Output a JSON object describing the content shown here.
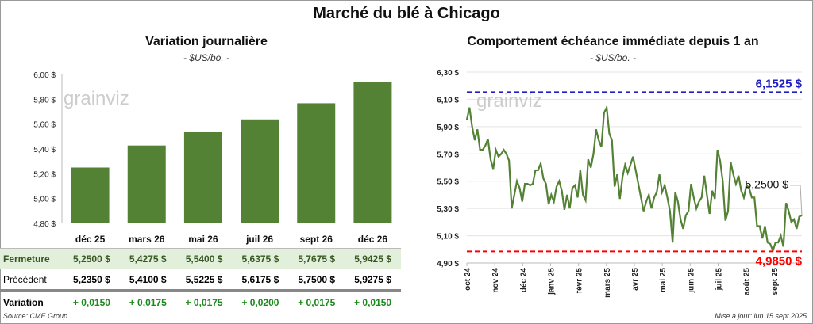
{
  "title": "Marché du blé à Chicago",
  "footer": {
    "source": "Source: CME Group",
    "updated": "Mise à jour: lun 15 sept 2025"
  },
  "watermark": "grainviz",
  "table": {
    "headers": [
      "déc 25",
      "mars 26",
      "mai 26",
      "juil 26",
      "sept 26",
      "déc 26"
    ],
    "rows": [
      {
        "label": "Fermeture",
        "values": [
          "5,2500  $",
          "5,4275  $",
          "5,5400  $",
          "5,6375  $",
          "5,7675  $",
          "5,9425  $"
        ]
      },
      {
        "label": "Précédent",
        "values": [
          "5,2350  $",
          "5,4100  $",
          "5,5225  $",
          "5,6175  $",
          "5,7500  $",
          "5,9275  $"
        ]
      },
      {
        "label": "Variation",
        "values": [
          "+ 0,0150",
          "+ 0,0175",
          "+ 0,0175",
          "+ 0,0200",
          "+ 0,0175",
          "+ 0,0150"
        ]
      }
    ]
  },
  "chart_data": [
    {
      "type": "bar",
      "title": "Variation journalière",
      "subtitle": "- $US/bo. -",
      "categories": [
        "déc 25",
        "mars 26",
        "mai 26",
        "juil 26",
        "sept 26",
        "déc 26"
      ],
      "values": [
        5.25,
        5.4275,
        5.54,
        5.6375,
        5.7675,
        5.9425
      ],
      "ylim": [
        4.8,
        6.0
      ],
      "yticks": [
        "4,80 $",
        "5,00 $",
        "5,20 $",
        "5,40 $",
        "5,60 $",
        "5,80 $",
        "6,00 $"
      ],
      "color": "#548235"
    },
    {
      "type": "line",
      "title": "Comportement échéance immédiate depuis 1 an",
      "subtitle": "- $US/bo. -",
      "xticks": [
        "oct 24",
        "nov 24",
        "déc 24",
        "janv 25",
        "févr 25",
        "mars 25",
        "avr 25",
        "mai 25",
        "juin 25",
        "juil 25",
        "août 25",
        "sept 25"
      ],
      "ylim": [
        4.9,
        6.3
      ],
      "yticks": [
        "4,90 $",
        "5,10 $",
        "5,30 $",
        "5,50 $",
        "5,70 $",
        "5,90 $",
        "6,10 $",
        "6,30 $"
      ],
      "values": [
        5.95,
        6.04,
        5.9,
        5.8,
        5.88,
        5.73,
        5.73,
        5.76,
        5.81,
        5.66,
        5.59,
        5.73,
        5.68,
        5.7,
        5.73,
        5.7,
        5.65,
        5.3,
        5.4,
        5.5,
        5.45,
        5.35,
        5.48,
        5.48,
        5.47,
        5.48,
        5.58,
        5.58,
        5.63,
        5.52,
        5.48,
        5.33,
        5.4,
        5.35,
        5.46,
        5.5,
        5.43,
        5.29,
        5.4,
        5.3,
        5.45,
        5.47,
        5.38,
        5.58,
        5.4,
        5.36,
        5.66,
        5.6,
        5.7,
        5.88,
        5.8,
        5.75,
        6.0,
        6.04,
        5.85,
        5.8,
        5.46,
        5.55,
        5.37,
        5.53,
        5.62,
        5.56,
        5.62,
        5.68,
        5.58,
        5.48,
        5.38,
        5.28,
        5.35,
        5.4,
        5.3,
        5.38,
        5.42,
        5.55,
        5.42,
        5.47,
        5.38,
        5.28,
        5.05,
        5.42,
        5.35,
        5.22,
        5.15,
        5.25,
        5.28,
        5.48,
        5.38,
        5.3,
        5.35,
        5.38,
        5.54,
        5.4,
        5.26,
        5.43,
        5.37,
        5.73,
        5.65,
        5.5,
        5.21,
        5.28,
        5.64,
        5.55,
        5.48,
        5.54,
        5.43,
        5.38,
        5.47,
        5.45,
        5.38,
        5.38,
        5.17,
        5.17,
        5.08,
        5.17,
        5.05,
        5.04,
        4.99,
        5.05,
        5.05,
        5.1,
        5.02,
        5.34,
        5.28,
        5.2,
        5.22,
        5.15,
        5.24,
        5.25
      ],
      "high": {
        "value": 6.1525,
        "label": "6,1525 $",
        "color": "#2020c0"
      },
      "low": {
        "value": 4.985,
        "label": "4,9850 $",
        "color": "#ff0000"
      },
      "last_label": "5,2500 $",
      "color": "#548235"
    }
  ]
}
